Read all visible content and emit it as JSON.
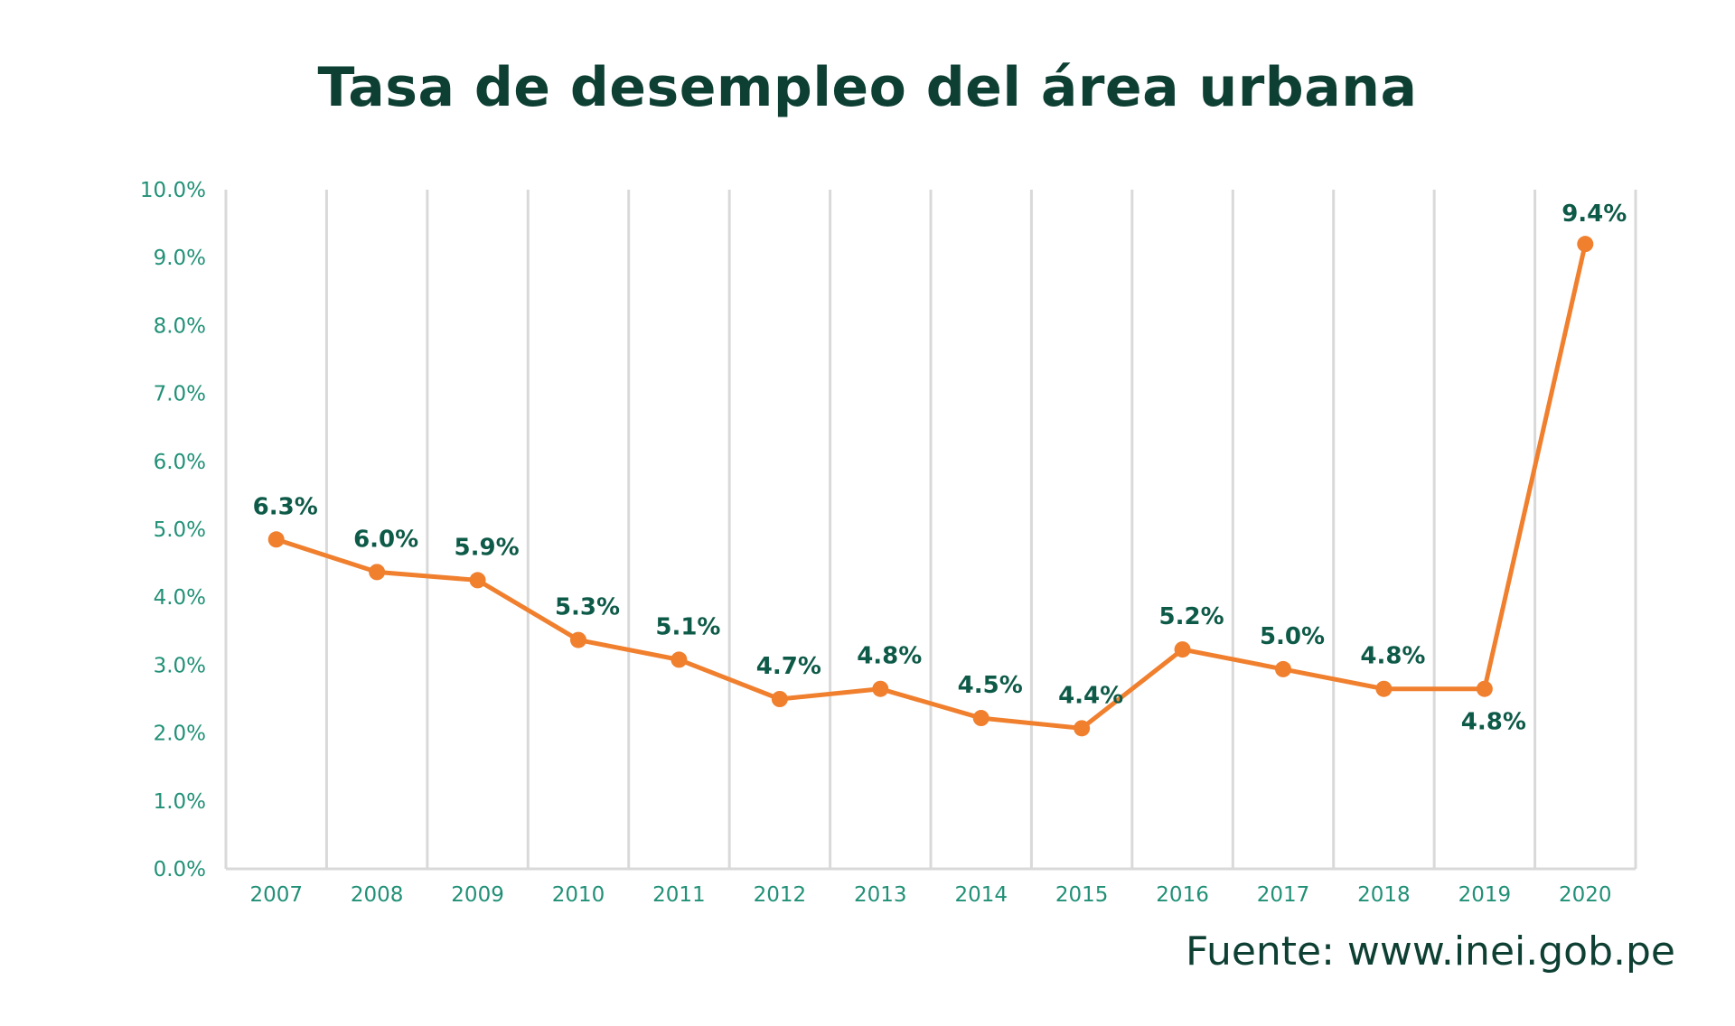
{
  "chart_data": {
    "type": "line",
    "title": "Tasa de desempleo del área urbana",
    "xlabel": "",
    "ylabel": "",
    "categories": [
      "2007",
      "2008",
      "2009",
      "2010",
      "2011",
      "2012",
      "2013",
      "2014",
      "2015",
      "2016",
      "2017",
      "2018",
      "2019",
      "2020"
    ],
    "series": [
      {
        "name": "Tasa de desempleo",
        "values": [
          6.3,
          6.0,
          5.9,
          5.3,
          5.1,
          4.7,
          4.8,
          4.5,
          4.4,
          5.2,
          5.0,
          4.8,
          4.8,
          9.4
        ],
        "labels": [
          "6.3%",
          "6.0%",
          "5.9%",
          "5.3%",
          "5.1%",
          "4.7%",
          "4.8%",
          "4.5%",
          "4.4%",
          "5.2%",
          "5.0%",
          "4.8%",
          "4.8%",
          "9.4%"
        ],
        "plotted_y": [
          4.85,
          4.37,
          4.25,
          3.37,
          3.08,
          2.5,
          2.65,
          2.22,
          2.07,
          3.23,
          2.94,
          2.65,
          2.65,
          9.2
        ]
      }
    ],
    "y_ticks": [
      "0.0%",
      "1.0%",
      "2.0%",
      "3.0%",
      "4.0%",
      "5.0%",
      "6.0%",
      "7.0%",
      "8.0%",
      "9.0%",
      "10.0%"
    ],
    "ylim": [
      0,
      10
    ],
    "grid": "vertical",
    "line_color": "#f07f2e",
    "label_color": "#0e5a48",
    "tick_color": "#219077",
    "title_color": "#0e3f33"
  },
  "source": "Fuente: www.inei.gob.pe"
}
